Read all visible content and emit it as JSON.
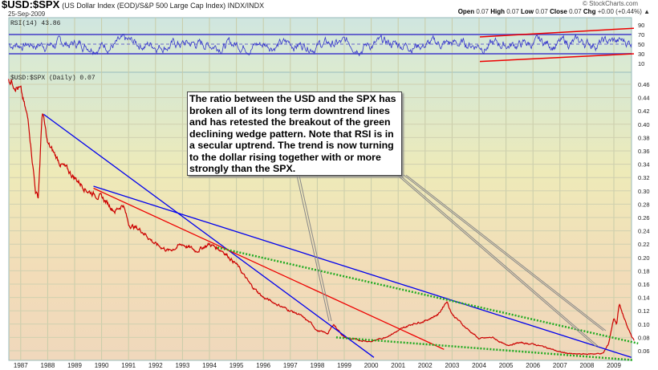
{
  "header": {
    "symbol": "$USD:$SPX",
    "description": "(US Dollar Index (EOD)/S&P 500 Large Cap Index) INDX/INDX",
    "date": "25-Sep-2009",
    "brand": "© StockCharts.com",
    "ohlc": {
      "open_label": "Open",
      "open": "0.07",
      "high_label": "High",
      "high": "0.07",
      "low_label": "Low",
      "low": "0.07",
      "close_label": "Close",
      "close": "0.07",
      "chg_label": "Chg",
      "chg": "+0.00 (+0.44%)"
    }
  },
  "annotation": "The ratio between the USD and the SPX has broken all of its long term downtrend lines and has retested the breakout of the green declining wedge pattern.  Note that RSI is in a secular uptrend.  The trend is now turning to the dollar rising together with or more strongly than the SPX.",
  "colors": {
    "price": "#cc0000",
    "rsi": "#3333cc",
    "trend_blue": "#0000ee",
    "trend_red": "#ee0000",
    "wedge_green": "#22aa22"
  },
  "chart_data": [
    {
      "type": "line",
      "title": "RSI(14) 43.86",
      "legend": "RSI(14) 43.86",
      "ylim": [
        0,
        100
      ],
      "yticks": [
        "90",
        "70",
        "50",
        "30",
        "10"
      ],
      "reference_lines": [
        70,
        50,
        30
      ],
      "note": "oscillates mainly between 30 and 70; rising red channel 2004-2009"
    },
    {
      "type": "line",
      "legend": "$USD:$SPX (Daily) 0.07",
      "ylim": [
        0.045,
        0.475
      ],
      "yticks": [
        "0.46",
        "0.44",
        "0.42",
        "0.40",
        "0.38",
        "0.36",
        "0.34",
        "0.32",
        "0.30",
        "0.28",
        "0.26",
        "0.24",
        "0.22",
        "0.20",
        "0.18",
        "0.16",
        "0.14",
        "0.12",
        "0.10",
        "0.08",
        "0.06"
      ],
      "xticks": [
        "1987",
        "1988",
        "1989",
        "1990",
        "1991",
        "1992",
        "1993",
        "1994",
        "1995",
        "1996",
        "1997",
        "1998",
        "1999",
        "2000",
        "2001",
        "2002",
        "2003",
        "2004",
        "2005",
        "2006",
        "2007",
        "2008",
        "2009"
      ],
      "series": [
        {
          "name": "$USD:$SPX",
          "x": [
            1986.55,
            1986.8,
            1987.0,
            1987.3,
            1987.55,
            1987.65,
            1987.8,
            1988.0,
            1988.5,
            1989.0,
            1989.5,
            1990.0,
            1990.5,
            1990.8,
            1991.0,
            1991.5,
            1992.0,
            1992.5,
            1993.0,
            1993.5,
            1994.0,
            1994.5,
            1995.0,
            1995.5,
            1996.0,
            1996.5,
            1997.0,
            1997.3,
            1997.8,
            1998.0,
            1998.4,
            1998.6,
            1999.0,
            1999.5,
            2000.0,
            2000.5,
            2001.0,
            2001.5,
            2002.0,
            2002.5,
            2002.8,
            2003.0,
            2003.5,
            2004.0,
            2004.5,
            2005.0,
            2005.5,
            2006.0,
            2006.5,
            2007.0,
            2007.5,
            2008.0,
            2008.6,
            2008.8,
            2009.0,
            2009.1,
            2009.2,
            2009.5,
            2009.75
          ],
          "y": [
            0.47,
            0.46,
            0.45,
            0.4,
            0.3,
            0.29,
            0.42,
            0.37,
            0.34,
            0.32,
            0.3,
            0.29,
            0.27,
            0.28,
            0.25,
            0.24,
            0.22,
            0.21,
            0.22,
            0.21,
            0.22,
            0.21,
            0.19,
            0.16,
            0.14,
            0.13,
            0.12,
            0.115,
            0.1,
            0.09,
            0.086,
            0.1,
            0.08,
            0.076,
            0.074,
            0.08,
            0.09,
            0.1,
            0.105,
            0.115,
            0.135,
            0.115,
            0.095,
            0.078,
            0.08,
            0.068,
            0.072,
            0.07,
            0.065,
            0.058,
            0.055,
            0.055,
            0.056,
            0.07,
            0.11,
            0.1,
            0.13,
            0.095,
            0.075
          ]
        }
      ],
      "trendlines": [
        {
          "name": "blue-steep",
          "color": "blue",
          "from": [
            1987.85,
            0.415
          ],
          "to": [
            2000.1,
            0.05
          ]
        },
        {
          "name": "blue-long",
          "color": "blue",
          "from": [
            1989.7,
            0.307
          ],
          "to": [
            2009.65,
            0.05
          ]
        },
        {
          "name": "red",
          "color": "red",
          "from": [
            1989.7,
            0.304
          ],
          "to": [
            2002.7,
            0.062
          ]
        },
        {
          "name": "green-upper",
          "color": "green",
          "dotted": true,
          "from": [
            1994.3,
            0.215
          ],
          "to": [
            2009.9,
            0.071
          ]
        },
        {
          "name": "green-lower",
          "color": "green",
          "dotted": true,
          "from": [
            1998.7,
            0.08
          ],
          "to": [
            2009.7,
            0.046
          ]
        }
      ]
    }
  ]
}
